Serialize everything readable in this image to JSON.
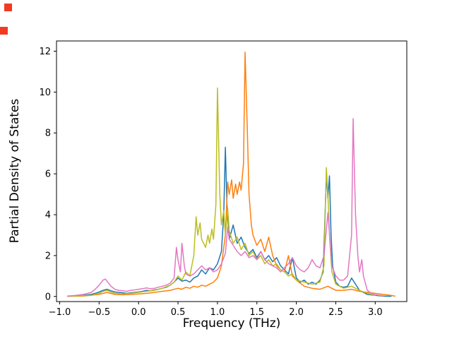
{
  "artifacts": {
    "color": "#f23a21"
  },
  "chart_data": {
    "type": "line",
    "title": "",
    "xlabel": "Frequency (THz)",
    "ylabel": "Partial Density of States",
    "xlim": [
      -1.04,
      3.4
    ],
    "ylim": [
      -0.25,
      12.5
    ],
    "grid": false,
    "legend": "none",
    "xticks": [
      -1.0,
      -0.5,
      0.0,
      0.5,
      1.0,
      1.5,
      2.0,
      2.5,
      3.0
    ],
    "xtick_labels": [
      "−1.0",
      "−0.5",
      "0.0",
      "0.5",
      "1.0",
      "1.5",
      "2.0",
      "2.5",
      "3.0"
    ],
    "yticks": [
      0,
      2,
      4,
      6,
      8,
      10,
      12
    ],
    "ytick_labels": [
      "0",
      "2",
      "4",
      "6",
      "8",
      "10",
      "12"
    ],
    "series": [
      {
        "name": "pdos-blue",
        "color": "#1f77b4",
        "points": [
          [
            -0.9,
            0.02
          ],
          [
            -0.8,
            0.03
          ],
          [
            -0.7,
            0.05
          ],
          [
            -0.6,
            0.1
          ],
          [
            -0.55,
            0.15
          ],
          [
            -0.5,
            0.22
          ],
          [
            -0.45,
            0.3
          ],
          [
            -0.4,
            0.35
          ],
          [
            -0.35,
            0.28
          ],
          [
            -0.3,
            0.22
          ],
          [
            -0.25,
            0.2
          ],
          [
            -0.2,
            0.18
          ],
          [
            -0.15,
            0.15
          ],
          [
            -0.1,
            0.18
          ],
          [
            -0.05,
            0.2
          ],
          [
            0,
            0.22
          ],
          [
            0.05,
            0.25
          ],
          [
            0.1,
            0.3
          ],
          [
            0.15,
            0.28
          ],
          [
            0.2,
            0.32
          ],
          [
            0.25,
            0.35
          ],
          [
            0.3,
            0.4
          ],
          [
            0.35,
            0.45
          ],
          [
            0.4,
            0.55
          ],
          [
            0.45,
            0.7
          ],
          [
            0.5,
            0.9
          ],
          [
            0.55,
            0.75
          ],
          [
            0.6,
            0.8
          ],
          [
            0.65,
            0.7
          ],
          [
            0.7,
            0.9
          ],
          [
            0.75,
            1
          ],
          [
            0.8,
            1.3
          ],
          [
            0.85,
            1.1
          ],
          [
            0.9,
            1.4
          ],
          [
            0.95,
            1.3
          ],
          [
            1,
            1.6
          ],
          [
            1.05,
            2.2
          ],
          [
            1.08,
            4
          ],
          [
            1.1,
            7.3
          ],
          [
            1.12,
            4.5
          ],
          [
            1.15,
            2.8
          ],
          [
            1.2,
            3.5
          ],
          [
            1.25,
            2.6
          ],
          [
            1.3,
            2.9
          ],
          [
            1.35,
            2.4
          ],
          [
            1.4,
            2.1
          ],
          [
            1.45,
            2.3
          ],
          [
            1.5,
            1.9
          ],
          [
            1.55,
            2.2
          ],
          [
            1.6,
            1.8
          ],
          [
            1.65,
            2
          ],
          [
            1.7,
            1.7
          ],
          [
            1.75,
            1.9
          ],
          [
            1.8,
            1.5
          ],
          [
            1.85,
            1.3
          ],
          [
            1.9,
            1.1
          ],
          [
            1.95,
            1.9
          ],
          [
            2,
            0.9
          ],
          [
            2.05,
            0.7
          ],
          [
            2.1,
            0.8
          ],
          [
            2.15,
            0.6
          ],
          [
            2.2,
            0.7
          ],
          [
            2.25,
            0.6
          ],
          [
            2.3,
            0.8
          ],
          [
            2.34,
            1.2
          ],
          [
            2.36,
            3.5
          ],
          [
            2.38,
            6
          ],
          [
            2.4,
            4.8
          ],
          [
            2.42,
            5.9
          ],
          [
            2.44,
            3
          ],
          [
            2.46,
            1.5
          ],
          [
            2.5,
            0.7
          ],
          [
            2.55,
            0.5
          ],
          [
            2.6,
            0.45
          ],
          [
            2.65,
            0.5
          ],
          [
            2.7,
            0.9
          ],
          [
            2.75,
            0.6
          ],
          [
            2.8,
            0.3
          ],
          [
            2.85,
            0.2
          ],
          [
            2.9,
            0.1
          ],
          [
            3,
            0.05
          ],
          [
            3.1,
            0.02
          ],
          [
            3.2,
            0.01
          ]
        ]
      },
      {
        "name": "pdos-orange",
        "color": "#ff7f0e",
        "points": [
          [
            -0.9,
            0.01
          ],
          [
            -0.7,
            0.02
          ],
          [
            -0.5,
            0.1
          ],
          [
            -0.45,
            0.15
          ],
          [
            -0.4,
            0.2
          ],
          [
            -0.35,
            0.15
          ],
          [
            -0.3,
            0.1
          ],
          [
            -0.2,
            0.08
          ],
          [
            -0.1,
            0.1
          ],
          [
            0,
            0.12
          ],
          [
            0.1,
            0.15
          ],
          [
            0.2,
            0.2
          ],
          [
            0.3,
            0.25
          ],
          [
            0.4,
            0.3
          ],
          [
            0.5,
            0.4
          ],
          [
            0.55,
            0.35
          ],
          [
            0.6,
            0.45
          ],
          [
            0.65,
            0.4
          ],
          [
            0.7,
            0.5
          ],
          [
            0.75,
            0.45
          ],
          [
            0.8,
            0.55
          ],
          [
            0.85,
            0.5
          ],
          [
            0.9,
            0.6
          ],
          [
            0.95,
            0.7
          ],
          [
            1,
            0.9
          ],
          [
            1.05,
            1.5
          ],
          [
            1.1,
            3
          ],
          [
            1.13,
            5.6
          ],
          [
            1.15,
            5
          ],
          [
            1.18,
            5.7
          ],
          [
            1.2,
            4.8
          ],
          [
            1.23,
            5.5
          ],
          [
            1.25,
            5
          ],
          [
            1.28,
            5.6
          ],
          [
            1.3,
            5.2
          ],
          [
            1.33,
            6.5
          ],
          [
            1.35,
            11.95
          ],
          [
            1.38,
            8
          ],
          [
            1.4,
            5
          ],
          [
            1.43,
            3.5
          ],
          [
            1.45,
            3
          ],
          [
            1.5,
            2.5
          ],
          [
            1.55,
            2.8
          ],
          [
            1.6,
            2.2
          ],
          [
            1.65,
            2.9
          ],
          [
            1.7,
            2
          ],
          [
            1.75,
            1.5
          ],
          [
            1.8,
            1.3
          ],
          [
            1.85,
            1.2
          ],
          [
            1.9,
            2
          ],
          [
            1.95,
            1
          ],
          [
            2,
            0.8
          ],
          [
            2.1,
            0.5
          ],
          [
            2.2,
            0.4
          ],
          [
            2.3,
            0.35
          ],
          [
            2.4,
            0.5
          ],
          [
            2.5,
            0.3
          ],
          [
            2.6,
            0.3
          ],
          [
            2.7,
            0.35
          ],
          [
            2.8,
            0.25
          ],
          [
            2.9,
            0.2
          ],
          [
            3,
            0.15
          ],
          [
            3.1,
            0.1
          ],
          [
            3.2,
            0.05
          ],
          [
            3.25,
            0.02
          ]
        ]
      },
      {
        "name": "pdos-olive",
        "color": "#bcbd22",
        "points": [
          [
            -0.9,
            0.01
          ],
          [
            -0.6,
            0.05
          ],
          [
            -0.5,
            0.15
          ],
          [
            -0.45,
            0.25
          ],
          [
            -0.4,
            0.3
          ],
          [
            -0.35,
            0.22
          ],
          [
            -0.3,
            0.15
          ],
          [
            -0.2,
            0.12
          ],
          [
            -0.1,
            0.15
          ],
          [
            0,
            0.2
          ],
          [
            0.1,
            0.25
          ],
          [
            0.2,
            0.3
          ],
          [
            0.3,
            0.4
          ],
          [
            0.4,
            0.55
          ],
          [
            0.45,
            0.7
          ],
          [
            0.5,
            1
          ],
          [
            0.55,
            0.8
          ],
          [
            0.6,
            1.2
          ],
          [
            0.65,
            1
          ],
          [
            0.7,
            2
          ],
          [
            0.73,
            3.9
          ],
          [
            0.75,
            3
          ],
          [
            0.78,
            3.6
          ],
          [
            0.8,
            2.8
          ],
          [
            0.85,
            2.4
          ],
          [
            0.88,
            3
          ],
          [
            0.9,
            2.6
          ],
          [
            0.93,
            3.3
          ],
          [
            0.95,
            2.8
          ],
          [
            0.98,
            4.5
          ],
          [
            1,
            10.2
          ],
          [
            1.03,
            5
          ],
          [
            1.05,
            3.5
          ],
          [
            1.08,
            4.2
          ],
          [
            1.1,
            3
          ],
          [
            1.13,
            4.3
          ],
          [
            1.15,
            3.2
          ],
          [
            1.2,
            2.6
          ],
          [
            1.25,
            2.9
          ],
          [
            1.3,
            2.3
          ],
          [
            1.35,
            2.6
          ],
          [
            1.4,
            2
          ],
          [
            1.45,
            2.2
          ],
          [
            1.5,
            1.8
          ],
          [
            1.55,
            2
          ],
          [
            1.6,
            1.6
          ],
          [
            1.65,
            1.8
          ],
          [
            1.7,
            1.5
          ],
          [
            1.75,
            1.6
          ],
          [
            1.8,
            1.3
          ],
          [
            1.85,
            1.2
          ],
          [
            1.9,
            1
          ],
          [
            1.95,
            1.1
          ],
          [
            2,
            0.8
          ],
          [
            2.1,
            0.7
          ],
          [
            2.2,
            0.6
          ],
          [
            2.3,
            0.7
          ],
          [
            2.35,
            1.5
          ],
          [
            2.38,
            6.3
          ],
          [
            2.4,
            5
          ],
          [
            2.42,
            3
          ],
          [
            2.45,
            1.2
          ],
          [
            2.5,
            0.6
          ],
          [
            2.6,
            0.4
          ],
          [
            2.7,
            0.5
          ],
          [
            2.8,
            0.3
          ],
          [
            2.9,
            0.15
          ],
          [
            3,
            0.05
          ]
        ]
      },
      {
        "name": "pdos-pink",
        "color": "#e377c2",
        "points": [
          [
            -0.9,
            0.02
          ],
          [
            -0.8,
            0.05
          ],
          [
            -0.7,
            0.1
          ],
          [
            -0.6,
            0.2
          ],
          [
            -0.55,
            0.35
          ],
          [
            -0.5,
            0.55
          ],
          [
            -0.45,
            0.8
          ],
          [
            -0.42,
            0.85
          ],
          [
            -0.4,
            0.75
          ],
          [
            -0.35,
            0.5
          ],
          [
            -0.3,
            0.35
          ],
          [
            -0.25,
            0.3
          ],
          [
            -0.2,
            0.28
          ],
          [
            -0.15,
            0.25
          ],
          [
            -0.1,
            0.3
          ],
          [
            -0.05,
            0.32
          ],
          [
            0,
            0.35
          ],
          [
            0.05,
            0.38
          ],
          [
            0.1,
            0.42
          ],
          [
            0.15,
            0.38
          ],
          [
            0.2,
            0.4
          ],
          [
            0.25,
            0.45
          ],
          [
            0.3,
            0.5
          ],
          [
            0.35,
            0.55
          ],
          [
            0.4,
            0.65
          ],
          [
            0.45,
            0.9
          ],
          [
            0.48,
            2.4
          ],
          [
            0.5,
            1.8
          ],
          [
            0.53,
            1.2
          ],
          [
            0.55,
            2.6
          ],
          [
            0.58,
            1.5
          ],
          [
            0.6,
            1.1
          ],
          [
            0.65,
            1
          ],
          [
            0.7,
            1.1
          ],
          [
            0.75,
            1.3
          ],
          [
            0.8,
            1.5
          ],
          [
            0.85,
            1.3
          ],
          [
            0.9,
            1.4
          ],
          [
            0.95,
            1.2
          ],
          [
            1,
            1.3
          ],
          [
            1.05,
            1.6
          ],
          [
            1.1,
            2.1
          ],
          [
            1.13,
            3.4
          ],
          [
            1.15,
            2.8
          ],
          [
            1.2,
            2.5
          ],
          [
            1.25,
            2.2
          ],
          [
            1.3,
            2
          ],
          [
            1.35,
            2.2
          ],
          [
            1.4,
            1.9
          ],
          [
            1.45,
            2
          ],
          [
            1.5,
            1.8
          ],
          [
            1.55,
            2.2
          ],
          [
            1.6,
            1.8
          ],
          [
            1.65,
            1.6
          ],
          [
            1.7,
            1.5
          ],
          [
            1.75,
            1.4
          ],
          [
            1.8,
            1.2
          ],
          [
            1.85,
            1.4
          ],
          [
            1.9,
            1.6
          ],
          [
            1.95,
            1.9
          ],
          [
            2,
            1.5
          ],
          [
            2.05,
            1.3
          ],
          [
            2.1,
            1.2
          ],
          [
            2.15,
            1.4
          ],
          [
            2.2,
            1.8
          ],
          [
            2.25,
            1.5
          ],
          [
            2.3,
            1.4
          ],
          [
            2.35,
            2
          ],
          [
            2.4,
            4.1
          ],
          [
            2.45,
            1.5
          ],
          [
            2.5,
            1
          ],
          [
            2.55,
            0.8
          ],
          [
            2.6,
            0.8
          ],
          [
            2.65,
            1
          ],
          [
            2.7,
            3
          ],
          [
            2.72,
            8.7
          ],
          [
            2.75,
            4
          ],
          [
            2.78,
            2
          ],
          [
            2.8,
            1.2
          ],
          [
            2.83,
            1.8
          ],
          [
            2.85,
            1
          ],
          [
            2.9,
            0.3
          ],
          [
            2.95,
            0.15
          ],
          [
            3,
            0.08
          ],
          [
            3.1,
            0.03
          ]
        ]
      }
    ]
  }
}
